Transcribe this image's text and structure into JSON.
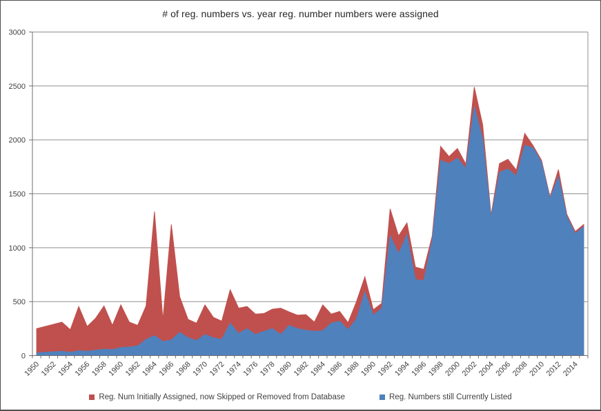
{
  "chart_data": {
    "type": "area",
    "stacked": true,
    "title": "# of reg. numbers vs. year reg. number numbers were assigned",
    "xlabel": "",
    "ylabel": "",
    "ylim": [
      0,
      3000
    ],
    "yticks": [
      0,
      500,
      1000,
      1500,
      2000,
      2500,
      3000
    ],
    "grid": true,
    "legend_position": "bottom",
    "x": [
      1950,
      1951,
      1952,
      1953,
      1954,
      1955,
      1956,
      1957,
      1958,
      1959,
      1960,
      1961,
      1962,
      1963,
      1964,
      1965,
      1966,
      1967,
      1968,
      1969,
      1970,
      1971,
      1972,
      1973,
      1974,
      1975,
      1976,
      1977,
      1978,
      1979,
      1980,
      1981,
      1982,
      1983,
      1984,
      1985,
      1986,
      1987,
      1988,
      1989,
      1990,
      1991,
      1992,
      1993,
      1994,
      1995,
      1996,
      1997,
      1998,
      1999,
      2000,
      2001,
      2002,
      2003,
      2004,
      2005,
      2006,
      2007,
      2008,
      2009,
      2010,
      2011,
      2012,
      2013,
      2014,
      2015
    ],
    "x_tick_labels": [
      "1950",
      "1952",
      "1954",
      "1956",
      "1958",
      "1960",
      "1962",
      "1964",
      "1966",
      "1968",
      "1970",
      "1972",
      "1974",
      "1976",
      "1978",
      "1980",
      "1982",
      "1984",
      "1986",
      "1988",
      "1990",
      "1992",
      "1994",
      "1996",
      "1998",
      "2000",
      "2002",
      "2004",
      "2006",
      "2008",
      "2010",
      "2012",
      "2014"
    ],
    "series": [
      {
        "name": "Reg. Num Initially Assigned, now Skipped or Removed from Database",
        "color": "#C0504D",
        "stack_layer": "top",
        "values": [
          225,
          240,
          255,
          270,
          210,
          410,
          230,
          295,
          400,
          225,
          395,
          230,
          190,
          310,
          1150,
          200,
          1070,
          330,
          170,
          160,
          275,
          190,
          170,
          310,
          235,
          205,
          190,
          165,
          180,
          245,
          125,
          125,
          145,
          85,
          240,
          85,
          90,
          65,
          160,
          140,
          50,
          45,
          250,
          165,
          105,
          115,
          105,
          40,
          130,
          65,
          90,
          40,
          180,
          130,
          20,
          80,
          90,
          55,
          110,
          20,
          20,
          15,
          65,
          20,
          20,
          20
        ]
      },
      {
        "name": "Reg. Numbers still Currently Listed",
        "color": "#4F81BD",
        "stack_layer": "bottom",
        "values": [
          25,
          30,
          35,
          40,
          30,
          45,
          40,
          50,
          60,
          55,
          75,
          80,
          90,
          150,
          185,
          130,
          145,
          215,
          165,
          140,
          195,
          165,
          150,
          300,
          205,
          250,
          195,
          225,
          250,
          195,
          280,
          250,
          235,
          225,
          230,
          300,
          320,
          240,
          340,
          590,
          375,
          440,
          1110,
          945,
          1125,
          705,
          695,
          1070,
          1810,
          1780,
          1830,
          1735,
          2310,
          2010,
          1280,
          1700,
          1730,
          1665,
          1950,
          1925,
          1790,
          1455,
          1660,
          1290,
          1130,
          1195
        ]
      }
    ],
    "axis_colors": {
      "axis_line": "#6e6e6e",
      "gridline": "#8f8f8f",
      "tick_label": "#404040"
    }
  }
}
